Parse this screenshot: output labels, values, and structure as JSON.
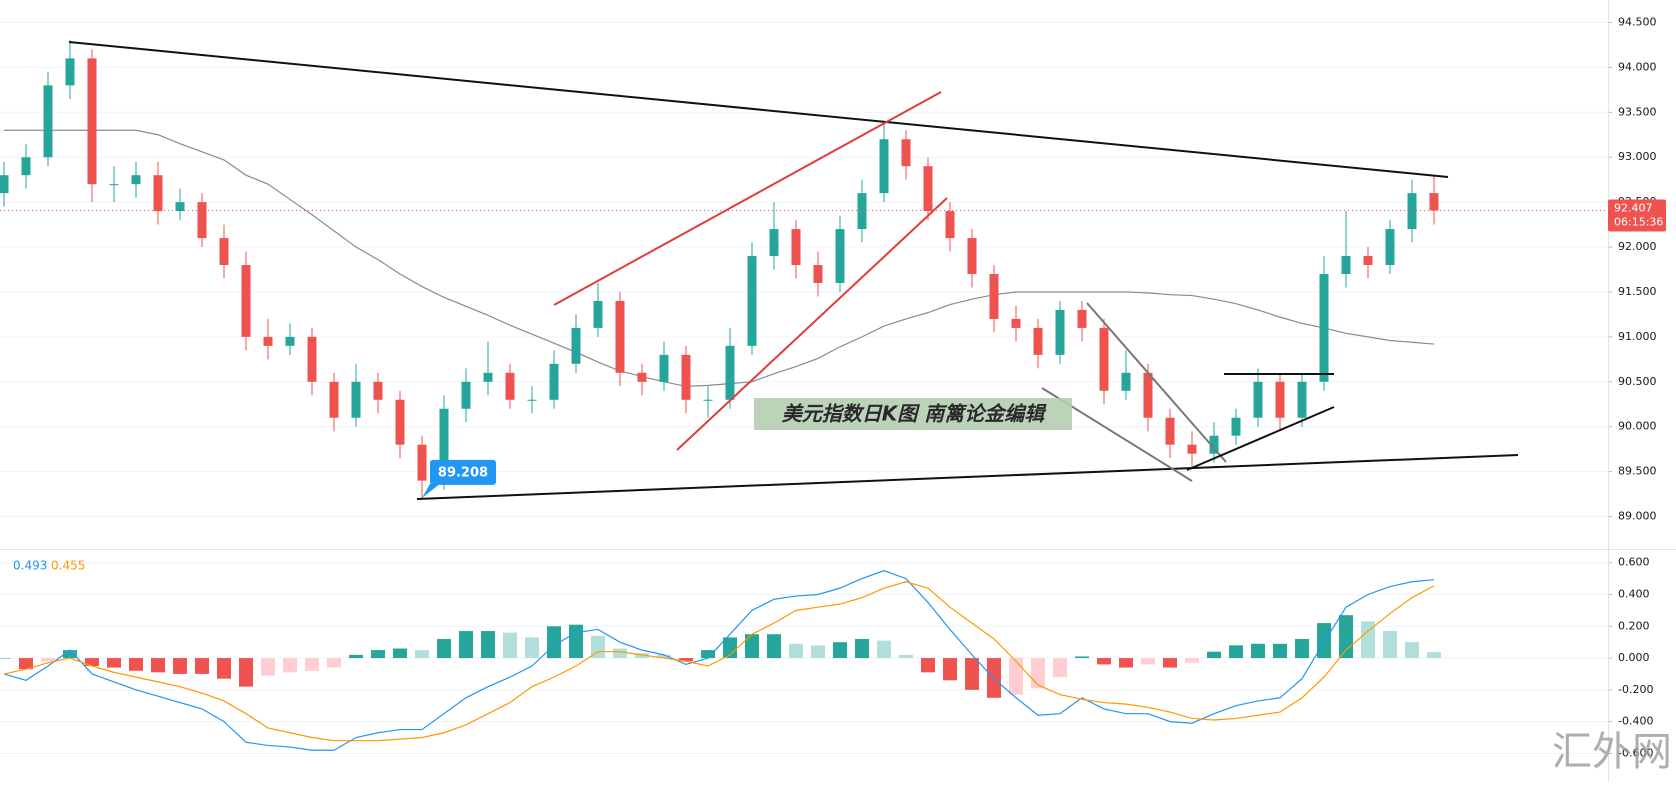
{
  "chart_data": [
    {
      "type": "candlestick",
      "open": [
        92.6,
        92.8,
        93.0,
        93.8,
        94.1,
        92.7,
        92.7,
        92.8,
        92.4,
        92.5,
        92.1,
        91.8,
        91.0,
        90.9,
        91.0,
        90.5,
        90.1,
        90.5,
        90.3,
        89.8,
        89.4,
        90.2,
        90.5,
        90.6,
        90.3,
        90.3,
        90.7,
        91.1,
        91.4,
        90.6,
        90.5,
        90.8,
        90.3,
        90.3,
        90.9,
        91.9,
        92.2,
        91.8,
        91.6,
        92.2,
        92.6,
        93.2,
        92.9,
        92.4,
        92.1,
        91.7,
        91.2,
        91.1,
        90.8,
        91.3,
        91.1,
        90.4,
        90.6,
        90.1,
        89.8,
        89.7,
        89.9,
        90.1,
        90.5,
        90.1,
        90.5,
        91.7,
        91.9,
        91.8,
        92.2,
        92.6
      ],
      "high": [
        92.95,
        93.15,
        93.95,
        94.3,
        94.2,
        92.9,
        92.95,
        92.95,
        92.65,
        92.6,
        92.25,
        91.95,
        91.2,
        91.15,
        91.1,
        90.6,
        90.7,
        90.6,
        90.4,
        89.9,
        90.35,
        90.65,
        90.95,
        90.7,
        90.45,
        90.85,
        91.25,
        91.6,
        91.5,
        90.7,
        90.95,
        90.9,
        90.45,
        91.1,
        92.05,
        92.5,
        92.3,
        91.95,
        92.35,
        92.75,
        93.4,
        93.3,
        93.0,
        92.5,
        92.2,
        91.8,
        91.35,
        91.2,
        91.4,
        91.4,
        91.2,
        90.85,
        90.7,
        90.2,
        89.95,
        90.05,
        90.2,
        90.65,
        90.6,
        90.6,
        91.9,
        92.4,
        92.0,
        92.3,
        92.75,
        92.8
      ],
      "low": [
        92.45,
        92.65,
        92.9,
        93.65,
        92.5,
        92.5,
        92.55,
        92.25,
        92.3,
        92.0,
        91.65,
        90.85,
        90.75,
        90.8,
        90.35,
        89.95,
        90.0,
        90.15,
        89.65,
        89.208,
        89.3,
        90.05,
        90.35,
        90.2,
        90.15,
        90.2,
        90.6,
        91.0,
        90.45,
        90.35,
        90.4,
        90.15,
        90.1,
        90.2,
        90.8,
        91.75,
        91.65,
        91.45,
        91.5,
        92.05,
        92.5,
        92.75,
        92.3,
        91.95,
        91.55,
        91.05,
        90.95,
        90.65,
        90.7,
        90.95,
        90.25,
        90.3,
        89.95,
        89.65,
        89.55,
        89.6,
        89.8,
        90.0,
        89.95,
        90.0,
        90.4,
        91.55,
        91.65,
        91.7,
        92.05,
        92.25
      ],
      "close": [
        92.8,
        93.0,
        93.8,
        94.1,
        92.7,
        92.7,
        92.8,
        92.4,
        92.5,
        92.1,
        91.8,
        91.0,
        90.9,
        91.0,
        90.5,
        90.1,
        90.5,
        90.3,
        89.8,
        89.4,
        90.2,
        90.5,
        90.6,
        90.3,
        90.3,
        90.7,
        91.1,
        91.4,
        90.6,
        90.5,
        90.8,
        90.3,
        90.3,
        90.9,
        91.9,
        92.2,
        91.8,
        91.6,
        92.2,
        92.6,
        93.2,
        92.9,
        92.4,
        92.1,
        91.7,
        91.2,
        91.1,
        90.8,
        91.3,
        91.1,
        90.4,
        90.6,
        90.1,
        89.8,
        89.7,
        89.9,
        90.1,
        90.5,
        90.1,
        90.5,
        91.7,
        91.9,
        91.8,
        92.2,
        92.6,
        92.407
      ],
      "up_color": "#26a69a",
      "down_color": "#ef5350",
      "series": [
        {
          "color": "#8a8a8a",
          "values": [
            93.3,
            93.3,
            93.3,
            93.3,
            93.3,
            93.3,
            93.3,
            93.25,
            93.15,
            93.06,
            92.97,
            92.8,
            92.7,
            92.53,
            92.36,
            92.18,
            92.0,
            91.86,
            91.7,
            91.56,
            91.44,
            91.34,
            91.24,
            91.13,
            91.03,
            90.93,
            90.83,
            90.72,
            90.62,
            90.56,
            90.5,
            90.45,
            90.46,
            90.48,
            90.5,
            90.59,
            90.67,
            90.76,
            90.89,
            91.0,
            91.12,
            91.2,
            91.27,
            91.36,
            91.42,
            91.47,
            91.5,
            91.5,
            91.5,
            91.5,
            91.5,
            91.5,
            91.49,
            91.47,
            91.46,
            91.42,
            91.37,
            91.3,
            91.22,
            91.15,
            91.1,
            91.04,
            91.0,
            90.96,
            90.94,
            90.92
          ]
        }
      ],
      "countdown": "06:15:36",
      "annotations": [
        "美元指数日K图   南篱论金编辑"
      ],
      "ylim": [
        88.65,
        94.75
      ],
      "yticks": [
        {
          "value": 89,
          "label": "89.000"
        },
        {
          "value": 89.5,
          "label": "89.500"
        },
        {
          "value": 90,
          "label": "90.000"
        },
        {
          "value": 90.5,
          "label": "90.500"
        },
        {
          "value": 91,
          "label": "91.000"
        },
        {
          "value": 91.5,
          "label": "91.500"
        },
        {
          "value": 92,
          "label": "92.000"
        },
        {
          "value": 92.5,
          "label": "92.500"
        },
        {
          "value": 93,
          "label": "93.000"
        },
        {
          "value": 93.5,
          "label": "93.500"
        },
        {
          "value": 94,
          "label": "94.000"
        },
        {
          "value": 94.5,
          "label": "94.500"
        }
      ],
      "grid": true
    },
    {
      "type": "macd",
      "series": [
        {
          "color": "#2196f3",
          "values": [
            -0.1,
            -0.14,
            -0.05,
            0.05,
            -0.1,
            -0.15,
            -0.2,
            -0.24,
            -0.28,
            -0.32,
            -0.4,
            -0.53,
            -0.55,
            -0.56,
            -0.58,
            -0.58,
            -0.5,
            -0.47,
            -0.45,
            -0.45,
            -0.35,
            -0.25,
            -0.18,
            -0.12,
            -0.05,
            0.08,
            0.16,
            0.18,
            0.1,
            0.05,
            0.02,
            -0.04,
            0.0,
            0.15,
            0.3,
            0.37,
            0.39,
            0.4,
            0.44,
            0.5,
            0.55,
            0.5,
            0.35,
            0.18,
            0.02,
            -0.13,
            -0.25,
            -0.36,
            -0.35,
            -0.25,
            -0.32,
            -0.35,
            -0.35,
            -0.4,
            -0.41,
            -0.35,
            -0.3,
            -0.27,
            -0.25,
            -0.13,
            0.1,
            0.32,
            0.4,
            0.45,
            0.48,
            0.493
          ]
        },
        {
          "color": "#ff9800",
          "values": [
            -0.1,
            -0.07,
            -0.03,
            0.0,
            -0.05,
            -0.09,
            -0.12,
            -0.15,
            -0.18,
            -0.22,
            -0.27,
            -0.35,
            -0.44,
            -0.47,
            -0.5,
            -0.52,
            -0.52,
            -0.52,
            -0.51,
            -0.5,
            -0.47,
            -0.42,
            -0.35,
            -0.28,
            -0.18,
            -0.12,
            -0.05,
            0.04,
            0.04,
            0.02,
            0.0,
            -0.02,
            -0.05,
            0.02,
            0.15,
            0.22,
            0.3,
            0.32,
            0.34,
            0.38,
            0.44,
            0.48,
            0.44,
            0.32,
            0.22,
            0.12,
            -0.02,
            -0.17,
            -0.23,
            -0.26,
            -0.28,
            -0.29,
            -0.31,
            -0.34,
            -0.38,
            -0.39,
            -0.38,
            -0.36,
            -0.34,
            -0.25,
            -0.12,
            0.05,
            0.17,
            0.28,
            0.38,
            0.455
          ]
        }
      ],
      "histogram": {
        "values": [
          0.0,
          -0.07,
          -0.02,
          0.05,
          -0.05,
          -0.06,
          -0.08,
          -0.09,
          -0.1,
          -0.1,
          -0.13,
          -0.18,
          -0.11,
          -0.09,
          -0.08,
          -0.06,
          0.02,
          0.05,
          0.06,
          0.05,
          0.12,
          0.17,
          0.17,
          0.16,
          0.13,
          0.2,
          0.21,
          0.14,
          0.06,
          0.03,
          0.02,
          -0.02,
          0.05,
          0.13,
          0.15,
          0.15,
          0.09,
          0.08,
          0.1,
          0.12,
          0.11,
          0.02,
          -0.09,
          -0.14,
          -0.2,
          -0.25,
          -0.23,
          -0.19,
          -0.12,
          0.01,
          -0.04,
          -0.06,
          -0.04,
          -0.06,
          -0.03,
          0.04,
          0.08,
          0.09,
          0.09,
          0.12,
          0.22,
          0.27,
          0.23,
          0.17,
          0.1,
          0.038
        ],
        "colors": [
          "#26a69a",
          "#b2dfdb",
          "#ef5350",
          "#ffcdd2"
        ]
      },
      "ylim": [
        -0.78,
        0.68
      ],
      "yticks": [
        {
          "value": -0.6,
          "label": "-0.600"
        },
        {
          "value": -0.4,
          "label": "-0.400"
        },
        {
          "value": -0.2,
          "label": "-0.200"
        },
        {
          "value": 0,
          "label": "0.000"
        },
        {
          "value": 0.2,
          "label": "0.200"
        },
        {
          "value": 0.4,
          "label": "0.400"
        },
        {
          "value": 0.6,
          "label": "0.600"
        }
      ],
      "grid": true
    }
  ],
  "watermark": "汇外网"
}
